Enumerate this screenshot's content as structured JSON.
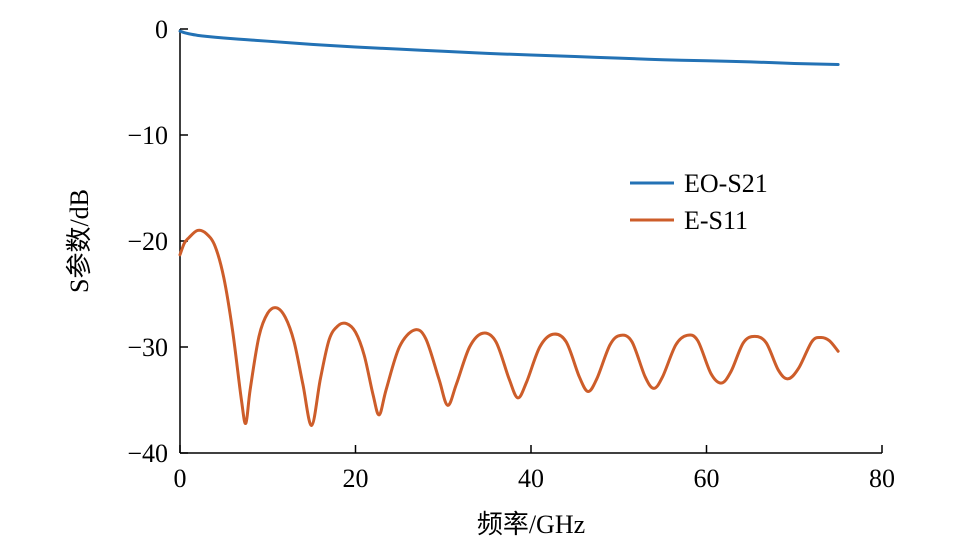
{
  "chart_data": {
    "type": "line",
    "xlabel": "频率/GHz",
    "ylabel": "S参数/dB",
    "xlim": [
      0,
      80
    ],
    "ylim": [
      -40,
      0
    ],
    "xticks": [
      0,
      20,
      40,
      60,
      80
    ],
    "yticks": [
      0,
      -10,
      -20,
      -30,
      -40
    ],
    "xtick_labels": [
      "0",
      "20",
      "40",
      "60",
      "80"
    ],
    "ytick_labels": [
      "0",
      "−10",
      "−20",
      "−30",
      "−40"
    ],
    "grid": false,
    "legend_position": "right-middle",
    "series": [
      {
        "name": "EO-S21",
        "color": "#2372b5",
        "x": [
          0,
          0.5,
          1,
          2,
          3,
          5,
          7.5,
          10,
          15,
          20,
          25,
          30,
          35,
          40,
          45,
          50,
          55,
          60,
          65,
          70,
          75
        ],
        "y": [
          -0.2,
          -0.35,
          -0.45,
          -0.6,
          -0.7,
          -0.85,
          -1.0,
          -1.15,
          -1.45,
          -1.7,
          -1.9,
          -2.1,
          -2.3,
          -2.45,
          -2.6,
          -2.75,
          -2.9,
          -3.0,
          -3.1,
          -3.25,
          -3.35
        ]
      },
      {
        "name": "E-S11",
        "color": "#cd5d2a",
        "x": [
          0,
          0.5,
          1,
          2,
          3,
          4,
          5,
          6,
          7,
          7.5,
          8,
          9,
          10,
          11,
          12,
          13,
          14,
          15,
          16,
          17,
          18,
          19,
          20,
          21,
          22,
          22.7,
          23.5,
          25,
          26.7,
          28,
          29.5,
          30.5,
          31.5,
          33,
          34.5,
          36,
          37.5,
          38.5,
          39.5,
          41,
          42.5,
          44,
          45.5,
          46.5,
          47.5,
          49,
          50.2,
          51.5,
          53,
          54,
          55,
          56.5,
          57.8,
          59,
          60.5,
          61.7,
          62.8,
          64.2,
          65.5,
          66.8,
          68.2,
          69.3,
          70.5,
          72,
          73,
          74,
          75
        ],
        "y": [
          -21.3,
          -20.2,
          -19.7,
          -19.0,
          -19.3,
          -20.5,
          -23.5,
          -28.5,
          -35,
          -37.2,
          -34,
          -29,
          -26.8,
          -26.3,
          -27.2,
          -29.5,
          -33.5,
          -37.4,
          -33,
          -29.3,
          -28.0,
          -27.8,
          -28.6,
          -30.8,
          -34.5,
          -36.4,
          -34,
          -30,
          -28.4,
          -29.2,
          -33,
          -35.5,
          -33.5,
          -30,
          -28.7,
          -29.5,
          -33,
          -34.8,
          -33.3,
          -30,
          -28.8,
          -29.5,
          -32.8,
          -34.2,
          -33,
          -29.8,
          -28.9,
          -29.5,
          -32.8,
          -33.9,
          -32.8,
          -29.8,
          -28.9,
          -29.4,
          -32.5,
          -33.4,
          -32.3,
          -29.6,
          -29.0,
          -29.6,
          -32.2,
          -33.0,
          -32.0,
          -29.5,
          -29.1,
          -29.4,
          -30.4
        ]
      }
    ]
  }
}
